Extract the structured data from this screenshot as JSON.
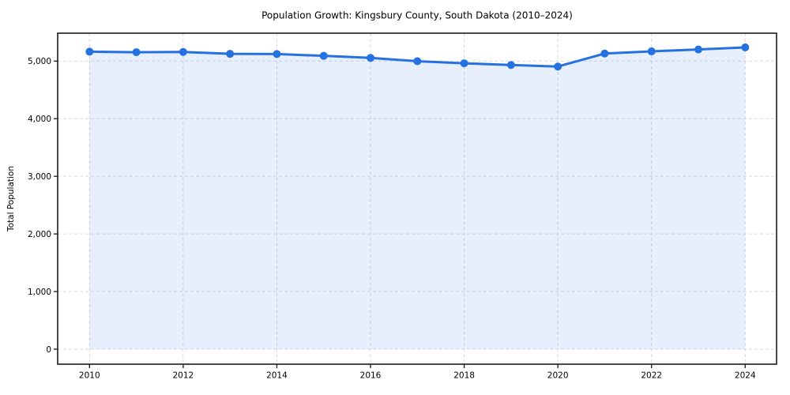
{
  "chart_data": {
    "type": "area",
    "title": "Population Growth: Kingsbury County, South Dakota (2010–2024)",
    "xlabel": "",
    "ylabel": "Total Population",
    "x": [
      2010,
      2011,
      2012,
      2013,
      2014,
      2015,
      2016,
      2017,
      2018,
      2019,
      2020,
      2021,
      2022,
      2023,
      2024
    ],
    "values": [
      5163,
      5154,
      5158,
      5125,
      5122,
      5091,
      5055,
      4998,
      4962,
      4932,
      4905,
      5131,
      5168,
      5201,
      5238
    ],
    "xticks": [
      2010,
      2012,
      2014,
      2016,
      2018,
      2020,
      2022,
      2024
    ],
    "yticks": [
      0,
      1000,
      2000,
      3000,
      4000,
      5000
    ],
    "ytick_labels": [
      "0",
      "1,000",
      "2,000",
      "3,000",
      "4,000",
      "5,000"
    ],
    "xlim": [
      2009.32,
      2024.68
    ],
    "ylim": [
      -260,
      5500
    ],
    "grid": true,
    "grid_style": "dashed",
    "legend": "none",
    "marker": "circle",
    "colors": {
      "line": "#2571e0",
      "fill": "rgba(37, 113, 224, 0.11)",
      "grid": "#d9d9d9",
      "spine": "#1a1a1a",
      "text": "#000000",
      "background": "#ffffff"
    }
  }
}
